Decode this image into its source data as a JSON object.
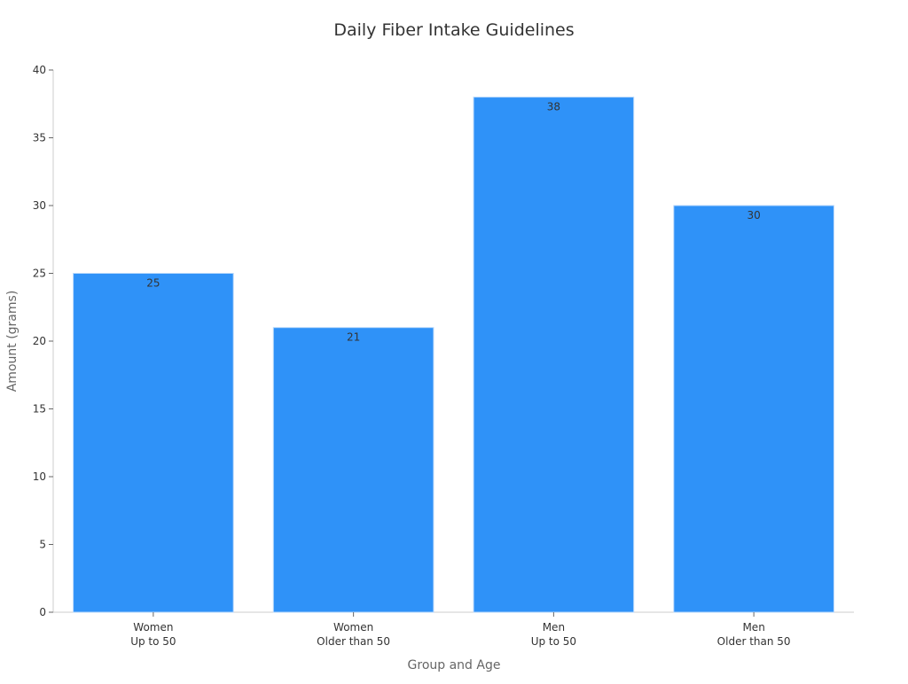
{
  "chart_data": {
    "type": "bar",
    "title": "Daily Fiber Intake Guidelines",
    "xlabel": "Group and Age",
    "ylabel": "Amount (grams)",
    "categories": [
      [
        "Women",
        "Up to 50"
      ],
      [
        "Women",
        "Older than 50"
      ],
      [
        "Men",
        "Up to 50"
      ],
      [
        "Men",
        "Older than 50"
      ]
    ],
    "values": [
      25,
      21,
      38,
      30
    ],
    "ylim": [
      0,
      40
    ],
    "yticks": [
      0,
      5,
      10,
      15,
      20,
      25,
      30,
      35,
      40
    ],
    "grid": false,
    "data_labels": true,
    "colors": {
      "bar": "#2f92f8",
      "bar_edge": "#b8d8fb",
      "axis": "#cccccc",
      "text": "#333333",
      "label": "#666666"
    }
  }
}
